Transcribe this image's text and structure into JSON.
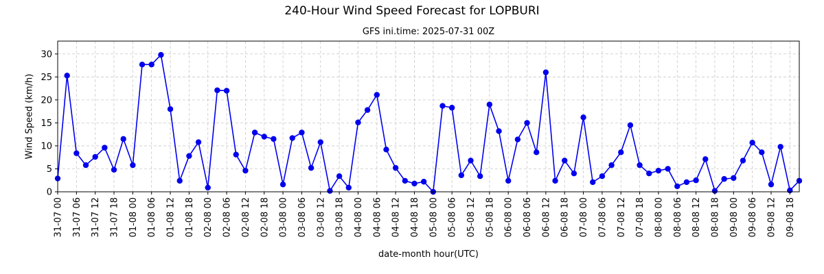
{
  "chart_data": {
    "type": "line",
    "suptitle": "240-Hour Wind Speed Forecast for LOPBURI",
    "title": "GFS ini.time: 2025-07-31 00Z",
    "xlabel": "date-month hour(UTC)",
    "ylabel": "Wind Speed (km/h)",
    "ylim": [
      0,
      32.8
    ],
    "yticks": [
      0,
      5,
      10,
      15,
      20,
      25,
      30
    ],
    "xlim": [
      0,
      237
    ],
    "grid": true,
    "line_color": "#0000ee",
    "x_step_hours": 3,
    "xtick_labels": [
      "31-07 00",
      "31-07 06",
      "31-07 12",
      "31-07 18",
      "01-08 00",
      "01-08 06",
      "01-08 12",
      "01-08 18",
      "02-08 00",
      "02-08 06",
      "02-08 12",
      "02-08 18",
      "03-08 00",
      "03-08 06",
      "03-08 12",
      "03-08 18",
      "04-08 00",
      "04-08 06",
      "04-08 12",
      "04-08 18",
      "05-08 00",
      "05-08 06",
      "05-08 12",
      "05-08 18",
      "06-08 00",
      "06-08 06",
      "06-08 12",
      "06-08 18",
      "07-08 00",
      "07-08 06",
      "07-08 12",
      "07-08 18",
      "08-08 00",
      "08-08 06",
      "08-08 12",
      "08-08 18",
      "09-08 00",
      "09-08 06",
      "09-08 12",
      "09-08 18"
    ],
    "values": [
      2.9,
      25.3,
      8.4,
      5.8,
      7.6,
      9.6,
      4.8,
      11.5,
      5.8,
      27.7,
      27.7,
      29.8,
      18.0,
      2.4,
      7.8,
      10.8,
      0.9,
      22.1,
      22.0,
      8.1,
      4.6,
      12.9,
      12.0,
      11.5,
      1.6,
      11.7,
      12.9,
      5.2,
      10.8,
      0.2,
      3.4,
      0.9,
      15.1,
      17.8,
      21.1,
      9.2,
      5.2,
      2.4,
      1.8,
      2.2,
      0.0,
      18.7,
      18.3,
      3.6,
      6.8,
      3.4,
      19.0,
      13.2,
      2.4,
      11.4,
      15.0,
      8.6,
      26.0,
      2.4,
      6.8,
      4.0,
      16.2,
      2.1,
      3.4,
      5.8,
      8.6,
      14.5,
      5.8,
      4.0,
      4.6,
      5.0,
      1.2,
      2.1,
      2.5,
      7.1,
      0.2,
      2.8,
      3.0,
      6.8,
      10.7,
      8.6,
      1.6,
      9.8,
      0.3,
      2.4
    ]
  }
}
